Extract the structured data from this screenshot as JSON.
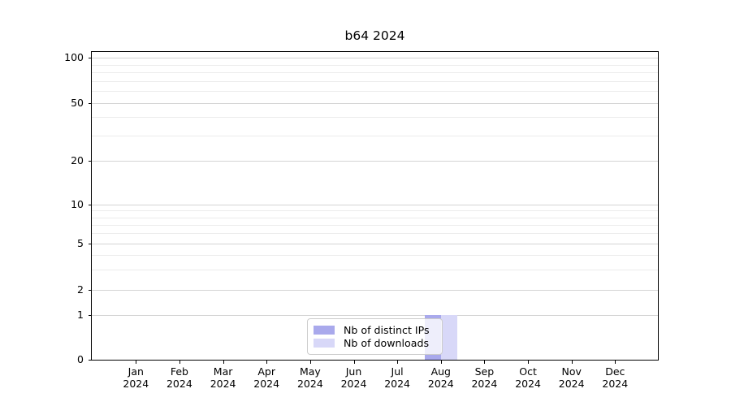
{
  "title": "b64 2024",
  "chart_data": {
    "type": "bar",
    "title": "b64 2024",
    "categories": [
      "Jan 2024",
      "Feb 2024",
      "Mar 2024",
      "Apr 2024",
      "May 2024",
      "Jun 2024",
      "Jul 2024",
      "Aug 2024",
      "Sep 2024",
      "Oct 2024",
      "Nov 2024",
      "Dec 2024"
    ],
    "series": [
      {
        "name": "Nb of distinct IPs",
        "color": "#a9a9ec",
        "values": [
          0,
          0,
          0,
          0,
          0,
          0,
          0,
          1,
          0,
          0,
          0,
          0
        ]
      },
      {
        "name": "Nb of downloads",
        "color": "#d8d8f8",
        "values": [
          0,
          0,
          0,
          0,
          0,
          0,
          0,
          1,
          0,
          0,
          0,
          0
        ]
      }
    ],
    "xlabel": "",
    "ylabel": "",
    "yscale": "symlog",
    "ylim": [
      0,
      110
    ],
    "y_major_ticks": [
      0,
      1,
      2,
      5,
      10,
      20,
      50,
      100
    ],
    "y_minor_ticks": [
      3,
      4,
      6,
      7,
      8,
      9,
      30,
      40,
      60,
      70,
      80,
      90
    ],
    "grid": true,
    "legend_position": "lower center"
  },
  "colors": {
    "spine": "#000000",
    "grid_major": "#d4d4d4",
    "grid_minor": "#ececec",
    "legend_border": "#cccccc",
    "background": "#ffffff"
  }
}
